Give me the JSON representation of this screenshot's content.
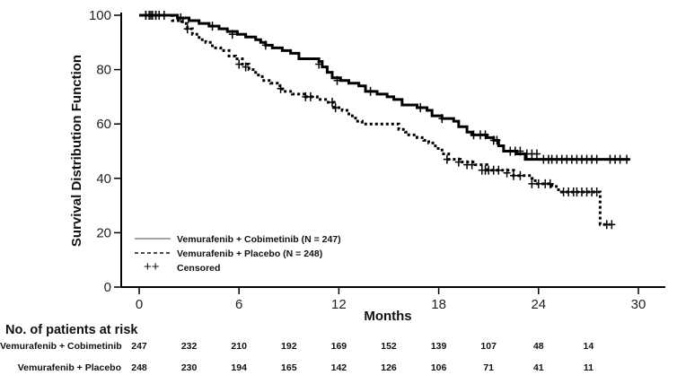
{
  "chart_data": {
    "type": "line",
    "subtype": "kaplan-meier",
    "title": "",
    "xlabel": "Months",
    "ylabel": "Survival Distribution Function",
    "xlim": [
      0,
      30
    ],
    "ylim": [
      0,
      100
    ],
    "xticks": [
      0,
      6,
      12,
      18,
      24,
      30
    ],
    "yticks": [
      0,
      20,
      40,
      60,
      80,
      100
    ],
    "grid": false,
    "legend": {
      "placement": "bottom-left",
      "entries": [
        {
          "label": "Vemurafenib  + Cobimetinib  (N = 247)",
          "style": "solid"
        },
        {
          "label": "Vemurafenib  + Placebo  (N = 248)",
          "style": "dashed"
        },
        {
          "label": "Censored",
          "symbol": "++"
        }
      ]
    },
    "series": [
      {
        "name": "Vemurafenib + Cobimetinib (N = 247)",
        "style": "solid",
        "steps": [
          [
            0,
            100
          ],
          [
            2.2,
            100
          ],
          [
            2.3,
            99
          ],
          [
            3.0,
            98
          ],
          [
            3.6,
            97
          ],
          [
            4.2,
            96
          ],
          [
            4.8,
            95
          ],
          [
            5.3,
            94
          ],
          [
            5.9,
            93
          ],
          [
            6.4,
            92
          ],
          [
            7.0,
            91
          ],
          [
            7.3,
            90
          ],
          [
            7.6,
            89
          ],
          [
            8.0,
            88
          ],
          [
            8.6,
            87
          ],
          [
            9.1,
            86
          ],
          [
            9.6,
            84
          ],
          [
            10.8,
            83
          ],
          [
            11.0,
            81
          ],
          [
            11.3,
            79
          ],
          [
            11.6,
            77
          ],
          [
            12.1,
            76
          ],
          [
            12.6,
            75
          ],
          [
            13.2,
            74
          ],
          [
            13.6,
            72
          ],
          [
            14.3,
            71
          ],
          [
            14.9,
            70
          ],
          [
            15.3,
            69
          ],
          [
            15.8,
            67
          ],
          [
            16.7,
            66
          ],
          [
            17.3,
            65
          ],
          [
            17.6,
            63
          ],
          [
            18.2,
            62
          ],
          [
            18.9,
            61
          ],
          [
            19.2,
            59
          ],
          [
            19.7,
            57
          ],
          [
            20.0,
            56
          ],
          [
            20.9,
            55
          ],
          [
            21.3,
            54
          ],
          [
            21.6,
            52
          ],
          [
            21.9,
            50
          ],
          [
            22.7,
            49
          ],
          [
            23.1,
            49
          ],
          [
            23.2,
            47
          ],
          [
            29.5,
            47
          ]
        ],
        "censored": [
          [
            0.4,
            100
          ],
          [
            0.6,
            100
          ],
          [
            0.8,
            100
          ],
          [
            1.0,
            100
          ],
          [
            1.2,
            100
          ],
          [
            1.5,
            100
          ],
          [
            2.5,
            99
          ],
          [
            4.4,
            96
          ],
          [
            5.6,
            93
          ],
          [
            7.6,
            89
          ],
          [
            10.8,
            82
          ],
          [
            11.9,
            76
          ],
          [
            13.9,
            72
          ],
          [
            16.9,
            66
          ],
          [
            18.2,
            62
          ],
          [
            20.1,
            56
          ],
          [
            20.5,
            56
          ],
          [
            20.8,
            56
          ],
          [
            21.3,
            54
          ],
          [
            21.5,
            54
          ],
          [
            22.3,
            50
          ],
          [
            22.6,
            50
          ],
          [
            22.9,
            50
          ],
          [
            23.3,
            49
          ],
          [
            23.6,
            49
          ],
          [
            23.9,
            49
          ],
          [
            24.3,
            47
          ],
          [
            24.6,
            47
          ],
          [
            24.8,
            47
          ],
          [
            25.1,
            47
          ],
          [
            25.4,
            47
          ],
          [
            25.7,
            47
          ],
          [
            26.0,
            47
          ],
          [
            26.3,
            47
          ],
          [
            26.6,
            47
          ],
          [
            26.9,
            47
          ],
          [
            27.2,
            47
          ],
          [
            27.5,
            47
          ],
          [
            28.3,
            47
          ],
          [
            28.6,
            47
          ],
          [
            28.9,
            47
          ],
          [
            29.3,
            47
          ]
        ]
      },
      {
        "name": "Vemurafenib + Placebo (N = 248)",
        "style": "dashed",
        "steps": [
          [
            0,
            100
          ],
          [
            1.7,
            100
          ],
          [
            2.0,
            98
          ],
          [
            2.6,
            97
          ],
          [
            2.9,
            95
          ],
          [
            3.2,
            93
          ],
          [
            3.6,
            91
          ],
          [
            4.0,
            90
          ],
          [
            4.4,
            88
          ],
          [
            4.9,
            87
          ],
          [
            5.4,
            85
          ],
          [
            5.8,
            84
          ],
          [
            6.2,
            82
          ],
          [
            6.6,
            80
          ],
          [
            7.0,
            78
          ],
          [
            7.4,
            76
          ],
          [
            7.9,
            75
          ],
          [
            8.3,
            74
          ],
          [
            8.6,
            72
          ],
          [
            9.2,
            71
          ],
          [
            10.0,
            70
          ],
          [
            10.7,
            69
          ],
          [
            11.2,
            68
          ],
          [
            11.7,
            66
          ],
          [
            12.2,
            65
          ],
          [
            12.6,
            63
          ],
          [
            13.0,
            61
          ],
          [
            13.4,
            60
          ],
          [
            15.3,
            60
          ],
          [
            15.6,
            58
          ],
          [
            16.0,
            57
          ],
          [
            16.2,
            56
          ],
          [
            16.7,
            55
          ],
          [
            17.1,
            54
          ],
          [
            17.4,
            53
          ],
          [
            17.8,
            51
          ],
          [
            18.2,
            49
          ],
          [
            18.6,
            47
          ],
          [
            19.3,
            46
          ],
          [
            20.2,
            45
          ],
          [
            20.9,
            43
          ],
          [
            21.3,
            43
          ],
          [
            22.5,
            41
          ],
          [
            23.6,
            40
          ],
          [
            23.8,
            38
          ],
          [
            24.8,
            37
          ],
          [
            25.2,
            35
          ],
          [
            27.7,
            35
          ],
          [
            27.7,
            23
          ],
          [
            28.3,
            23
          ]
        ],
        "censored": [
          [
            0.4,
            100
          ],
          [
            0.7,
            100
          ],
          [
            1.0,
            100
          ],
          [
            2.9,
            95
          ],
          [
            6.0,
            82
          ],
          [
            6.4,
            81
          ],
          [
            8.5,
            73
          ],
          [
            10.0,
            70
          ],
          [
            10.3,
            70
          ],
          [
            11.6,
            68
          ],
          [
            11.8,
            66
          ],
          [
            18.5,
            47
          ],
          [
            19.2,
            46
          ],
          [
            19.7,
            45
          ],
          [
            20.0,
            45
          ],
          [
            20.6,
            43
          ],
          [
            20.8,
            43
          ],
          [
            21.0,
            43
          ],
          [
            21.3,
            43
          ],
          [
            21.6,
            43
          ],
          [
            22.1,
            42
          ],
          [
            22.5,
            41
          ],
          [
            22.9,
            41
          ],
          [
            23.6,
            38
          ],
          [
            24.0,
            38
          ],
          [
            24.4,
            38
          ],
          [
            24.7,
            38
          ],
          [
            25.5,
            35
          ],
          [
            25.8,
            35
          ],
          [
            26.1,
            35
          ],
          [
            26.3,
            35
          ],
          [
            26.6,
            35
          ],
          [
            26.9,
            35
          ],
          [
            27.2,
            35
          ],
          [
            27.5,
            35
          ],
          [
            28.1,
            23
          ],
          [
            28.4,
            23
          ]
        ]
      }
    ]
  },
  "risk_table": {
    "title": "No. of patients at risk",
    "timepoints": [
      0,
      3,
      6,
      9,
      12,
      15,
      18,
      21,
      24,
      27
    ],
    "rows": [
      {
        "label": "Vemurafenib  + Cobimetinib",
        "values": [
          "247",
          "232",
          "210",
          "192",
          "169",
          "152",
          "139",
          "107",
          "48",
          "14"
        ]
      },
      {
        "label": "Vemurafenib  + Placebo",
        "values": [
          "248",
          "230",
          "194",
          "165",
          "142",
          "126",
          "106",
          "71",
          "41",
          "11"
        ]
      }
    ]
  }
}
